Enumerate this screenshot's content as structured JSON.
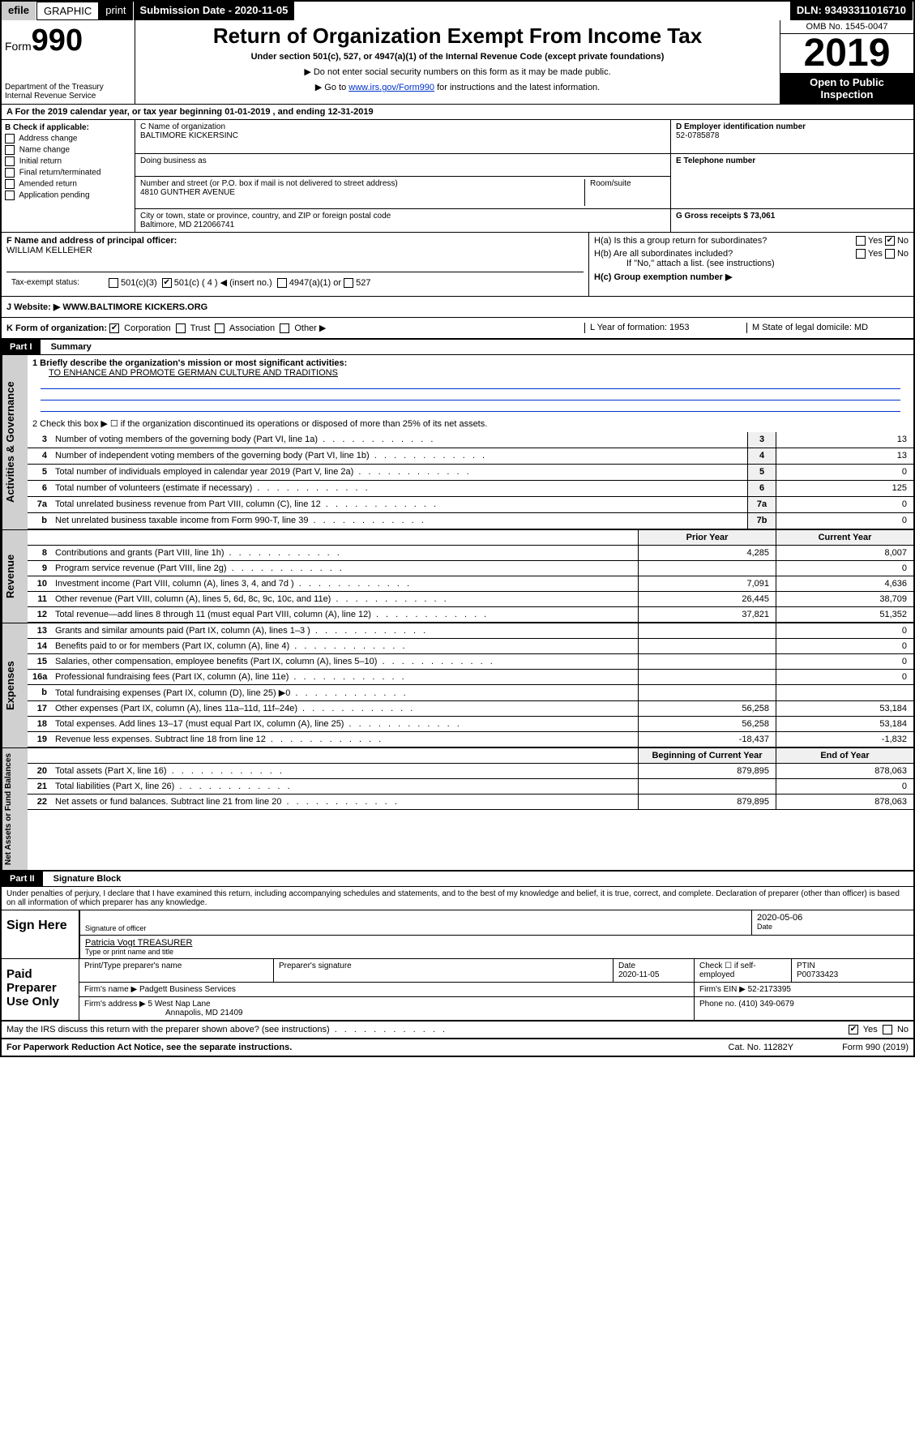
{
  "topbar": {
    "efile": "efile",
    "graphic": "GRAPHIC",
    "print": "print",
    "subdate_label": "Submission Date - 2020-11-05",
    "dln": "DLN: 93493311016710"
  },
  "header": {
    "form_prefix": "Form",
    "form_num": "990",
    "dept": "Department of the Treasury",
    "irs": "Internal Revenue Service",
    "title": "Return of Organization Exempt From Income Tax",
    "subtitle": "Under section 501(c), 527, or 4947(a)(1) of the Internal Revenue Code (except private foundations)",
    "note1": "▶ Do not enter social security numbers on this form as it may be made public.",
    "note2_pre": "▶ Go to ",
    "note2_link": "www.irs.gov/Form990",
    "note2_post": " for instructions and the latest information.",
    "omb": "OMB No. 1545-0047",
    "year": "2019",
    "open": "Open to Public Inspection"
  },
  "sectionA": {
    "tax_year": "A For the 2019 calendar year, or tax year beginning 01-01-2019   , and ending 12-31-2019",
    "b_label": "B Check if applicable:",
    "b_items": [
      "Address change",
      "Name change",
      "Initial return",
      "Final return/terminated",
      "Amended return",
      "Application pending"
    ],
    "c_name_label": "C Name of organization",
    "c_name": "BALTIMORE KICKERSINC",
    "dba_label": "Doing business as",
    "addr_label": "Number and street (or P.O. box if mail is not delivered to street address)",
    "room_label": "Room/suite",
    "addr": "4810 GUNTHER AVENUE",
    "city_label": "City or town, state or province, country, and ZIP or foreign postal code",
    "city": "Baltimore, MD  212066741",
    "f_label": "F Name and address of principal officer:",
    "f_name": "WILLIAM KELLEHER",
    "d_label": "D Employer identification number",
    "d_ein": "52-0785878",
    "e_label": "E Telephone number",
    "g_label": "G Gross receipts $ 73,061",
    "ha_label": "H(a)  Is this a group return for subordinates?",
    "hb_label": "H(b)  Are all subordinates included?",
    "hb_note": "If \"No,\" attach a list. (see instructions)",
    "hc_label": "H(c)  Group exemption number ▶",
    "yes": "Yes",
    "no": "No"
  },
  "texRow": {
    "label": "Tax-exempt status:",
    "opts": [
      "501(c)(3)",
      "501(c) ( 4 ) ◀ (insert no.)",
      "4947(a)(1) or",
      "527"
    ]
  },
  "website": {
    "label": "J   Website: ▶",
    "value": "WWW.BALTIMORE KICKERS.ORG"
  },
  "korg": {
    "k_label": "K Form of organization:",
    "k_opts": [
      "Corporation",
      "Trust",
      "Association",
      "Other ▶"
    ],
    "l_label": "L Year of formation: 1953",
    "m_label": "M State of legal domicile: MD"
  },
  "part1": {
    "header": "Part I",
    "title": "Summary",
    "q1_label": "1  Briefly describe the organization's mission or most significant activities:",
    "q1_val": "TO ENHANCE AND PROMOTE GERMAN CULTURE AND TRADITIONS",
    "q2": "2   Check this box ▶ ☐  if the organization discontinued its operations or disposed of more than 25% of its net assets.",
    "rows": [
      {
        "n": "3",
        "label": "Number of voting members of the governing body (Part VI, line 1a)",
        "ln": "3",
        "v": "13"
      },
      {
        "n": "4",
        "label": "Number of independent voting members of the governing body (Part VI, line 1b)",
        "ln": "4",
        "v": "13"
      },
      {
        "n": "5",
        "label": "Total number of individuals employed in calendar year 2019 (Part V, line 2a)",
        "ln": "5",
        "v": "0"
      },
      {
        "n": "6",
        "label": "Total number of volunteers (estimate if necessary)",
        "ln": "6",
        "v": "125"
      },
      {
        "n": "7a",
        "label": "Total unrelated business revenue from Part VIII, column (C), line 12",
        "ln": "7a",
        "v": "0"
      },
      {
        "n": "b",
        "label": "Net unrelated business taxable income from Form 990-T, line 39",
        "ln": "7b",
        "v": "0"
      }
    ],
    "col_prior": "Prior Year",
    "col_current": "Current Year",
    "revenue_rows": [
      {
        "n": "8",
        "label": "Contributions and grants (Part VIII, line 1h)",
        "p": "4,285",
        "c": "8,007"
      },
      {
        "n": "9",
        "label": "Program service revenue (Part VIII, line 2g)",
        "p": "",
        "c": "0"
      },
      {
        "n": "10",
        "label": "Investment income (Part VIII, column (A), lines 3, 4, and 7d )",
        "p": "7,091",
        "c": "4,636"
      },
      {
        "n": "11",
        "label": "Other revenue (Part VIII, column (A), lines 5, 6d, 8c, 9c, 10c, and 11e)",
        "p": "26,445",
        "c": "38,709"
      },
      {
        "n": "12",
        "label": "Total revenue—add lines 8 through 11 (must equal Part VIII, column (A), line 12)",
        "p": "37,821",
        "c": "51,352"
      }
    ],
    "expense_rows": [
      {
        "n": "13",
        "label": "Grants and similar amounts paid (Part IX, column (A), lines 1–3 )",
        "p": "",
        "c": "0"
      },
      {
        "n": "14",
        "label": "Benefits paid to or for members (Part IX, column (A), line 4)",
        "p": "",
        "c": "0"
      },
      {
        "n": "15",
        "label": "Salaries, other compensation, employee benefits (Part IX, column (A), lines 5–10)",
        "p": "",
        "c": "0"
      },
      {
        "n": "16a",
        "label": "Professional fundraising fees (Part IX, column (A), line 11e)",
        "p": "",
        "c": "0"
      },
      {
        "n": "b",
        "label": "Total fundraising expenses (Part IX, column (D), line 25) ▶0",
        "p": "grey",
        "c": "grey"
      },
      {
        "n": "17",
        "label": "Other expenses (Part IX, column (A), lines 11a–11d, 11f–24e)",
        "p": "56,258",
        "c": "53,184"
      },
      {
        "n": "18",
        "label": "Total expenses. Add lines 13–17 (must equal Part IX, column (A), line 25)",
        "p": "56,258",
        "c": "53,184"
      },
      {
        "n": "19",
        "label": "Revenue less expenses. Subtract line 18 from line 12",
        "p": "-18,437",
        "c": "-1,832"
      }
    ],
    "col_begin": "Beginning of Current Year",
    "col_end": "End of Year",
    "asset_rows": [
      {
        "n": "20",
        "label": "Total assets (Part X, line 16)",
        "p": "879,895",
        "c": "878,063"
      },
      {
        "n": "21",
        "label": "Total liabilities (Part X, line 26)",
        "p": "",
        "c": "0"
      },
      {
        "n": "22",
        "label": "Net assets or fund balances. Subtract line 21 from line 20",
        "p": "879,895",
        "c": "878,063"
      }
    ]
  },
  "sidebar": {
    "activities": "Activities & Governance",
    "revenue": "Revenue",
    "expenses": "Expenses",
    "assets": "Net Assets or Fund Balances"
  },
  "part2": {
    "header": "Part II",
    "title": "Signature Block",
    "declaration": "Under penalties of perjury, I declare that I have examined this return, including accompanying schedules and statements, and to the best of my knowledge and belief, it is true, correct, and complete. Declaration of preparer (other than officer) is based on all information of which preparer has any knowledge.",
    "sign_here": "Sign Here",
    "sig_officer": "Signature of officer",
    "sig_date": "2020-05-06",
    "sig_date_label": "Date",
    "officer_name": "Patricia Vogt TREASURER",
    "type_name": "Type or print name and title",
    "paid_prep": "Paid Preparer Use Only",
    "prep_name_label": "Print/Type preparer's name",
    "prep_sig_label": "Preparer's signature",
    "prep_date_label": "Date",
    "prep_date": "2020-11-05",
    "check_self": "Check ☐ if self-employed",
    "ptin_label": "PTIN",
    "ptin": "P00733423",
    "firm_name_label": "Firm's name   ▶",
    "firm_name": "Padgett Business Services",
    "firm_ein_label": "Firm's EIN ▶",
    "firm_ein": "52-2173395",
    "firm_addr_label": "Firm's address ▶",
    "firm_addr1": "5 West Nap Lane",
    "firm_addr2": "Annapolis, MD  21409",
    "phone_label": "Phone no.",
    "phone": "(410) 349-0679"
  },
  "footer": {
    "discuss": "May the IRS discuss this return with the preparer shown above? (see instructions)",
    "paperwork": "For Paperwork Reduction Act Notice, see the separate instructions.",
    "cat": "Cat. No. 11282Y",
    "form": "Form 990 (2019)",
    "yes": "Yes",
    "no": "No"
  }
}
